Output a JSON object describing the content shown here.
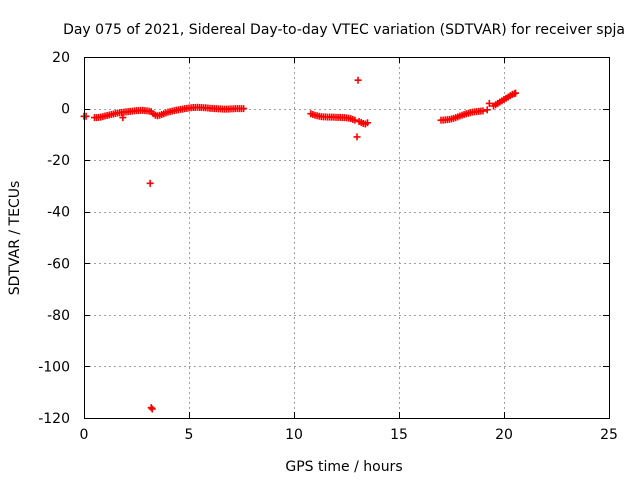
{
  "chart_data": {
    "type": "scatter",
    "title": "Day 075 of 2021, Sidereal Day-to-day VTEC variation (SDTVAR) for receiver spja",
    "xlabel": "GPS time / hours",
    "ylabel": "SDTVAR / TECUs",
    "xlim": [
      0,
      25
    ],
    "ylim": [
      -120,
      20
    ],
    "xticks": [
      0,
      5,
      10,
      15,
      20,
      25
    ],
    "yticks": [
      20,
      0,
      -20,
      -40,
      -60,
      -80,
      -100,
      -120
    ],
    "grid": true,
    "marker": "plus",
    "color": "#ff0000",
    "series": [
      {
        "values": [
          [
            0.0,
            -3.0
          ],
          [
            0.1,
            -3.0
          ],
          [
            0.5,
            -3.5
          ],
          [
            0.6,
            -3.5
          ],
          [
            0.7,
            -3.4
          ],
          [
            0.8,
            -3.3
          ],
          [
            0.9,
            -3.1
          ],
          [
            1.0,
            -2.9
          ],
          [
            1.1,
            -2.7
          ],
          [
            1.2,
            -2.5
          ],
          [
            1.3,
            -2.3
          ],
          [
            1.4,
            -2.1
          ],
          [
            1.5,
            -1.9
          ],
          [
            1.6,
            -1.7
          ],
          [
            1.7,
            -1.6
          ],
          [
            1.8,
            -1.5
          ],
          [
            1.85,
            -3.5
          ],
          [
            1.9,
            -1.4
          ],
          [
            2.0,
            -1.3
          ],
          [
            2.1,
            -1.2
          ],
          [
            2.2,
            -1.1
          ],
          [
            2.3,
            -1.0
          ],
          [
            2.4,
            -0.9
          ],
          [
            2.5,
            -0.8
          ],
          [
            2.6,
            -0.8
          ],
          [
            2.7,
            -0.7
          ],
          [
            2.8,
            -0.7
          ],
          [
            2.9,
            -0.8
          ],
          [
            3.0,
            -0.9
          ],
          [
            3.1,
            -1.0
          ],
          [
            3.2,
            -1.2
          ],
          [
            3.3,
            -2.0
          ],
          [
            3.4,
            -2.6
          ],
          [
            3.5,
            -2.8
          ],
          [
            3.6,
            -2.6
          ],
          [
            3.7,
            -2.3
          ],
          [
            3.8,
            -2.0
          ],
          [
            3.9,
            -1.7
          ],
          [
            4.0,
            -1.4
          ],
          [
            4.1,
            -1.2
          ],
          [
            4.2,
            -1.0
          ],
          [
            4.3,
            -0.8
          ],
          [
            4.4,
            -0.6
          ],
          [
            4.5,
            -0.5
          ],
          [
            4.6,
            -0.3
          ],
          [
            4.7,
            -0.2
          ],
          [
            4.8,
            0.0
          ],
          [
            4.9,
            0.1
          ],
          [
            5.0,
            0.2
          ],
          [
            5.1,
            0.3
          ],
          [
            5.2,
            0.4
          ],
          [
            5.3,
            0.4
          ],
          [
            5.4,
            0.5
          ],
          [
            5.5,
            0.4
          ],
          [
            5.6,
            0.4
          ],
          [
            5.7,
            0.3
          ],
          [
            5.8,
            0.3
          ],
          [
            5.9,
            0.2
          ],
          [
            6.0,
            0.1
          ],
          [
            6.1,
            0.1
          ],
          [
            6.2,
            0.0
          ],
          [
            6.3,
            0.0
          ],
          [
            6.4,
            -0.1
          ],
          [
            6.5,
            -0.1
          ],
          [
            6.6,
            -0.2
          ],
          [
            6.7,
            -0.2
          ],
          [
            6.8,
            -0.2
          ],
          [
            6.9,
            -0.2
          ],
          [
            7.0,
            -0.1
          ],
          [
            7.1,
            -0.1
          ],
          [
            7.2,
            0.0
          ],
          [
            7.3,
            0.0
          ],
          [
            7.4,
            0.0
          ],
          [
            7.5,
            0.0
          ],
          [
            7.6,
            0.0
          ],
          [
            3.15,
            -29.0
          ],
          [
            3.2,
            -116.0
          ],
          [
            3.25,
            -116.5
          ],
          [
            10.8,
            -2.0
          ],
          [
            10.9,
            -2.3
          ],
          [
            11.0,
            -2.6
          ],
          [
            11.1,
            -2.8
          ],
          [
            11.2,
            -3.0
          ],
          [
            11.3,
            -3.1
          ],
          [
            11.4,
            -3.2
          ],
          [
            11.5,
            -3.2
          ],
          [
            11.6,
            -3.3
          ],
          [
            11.7,
            -3.3
          ],
          [
            11.8,
            -3.3
          ],
          [
            11.9,
            -3.3
          ],
          [
            12.0,
            -3.4
          ],
          [
            12.1,
            -3.4
          ],
          [
            12.2,
            -3.4
          ],
          [
            12.3,
            -3.5
          ],
          [
            12.4,
            -3.5
          ],
          [
            12.5,
            -3.6
          ],
          [
            12.6,
            -3.7
          ],
          [
            12.7,
            -3.9
          ],
          [
            12.8,
            -4.2
          ],
          [
            12.9,
            -4.5
          ],
          [
            13.0,
            -11.0
          ],
          [
            13.05,
            11.0
          ],
          [
            13.1,
            -5.0
          ],
          [
            13.2,
            -5.4
          ],
          [
            13.3,
            -5.8
          ],
          [
            13.4,
            -6.0
          ],
          [
            13.5,
            -5.5
          ],
          [
            17.0,
            -4.5
          ],
          [
            17.1,
            -4.5
          ],
          [
            17.2,
            -4.4
          ],
          [
            17.3,
            -4.3
          ],
          [
            17.4,
            -4.2
          ],
          [
            17.5,
            -4.0
          ],
          [
            17.6,
            -3.8
          ],
          [
            17.7,
            -3.5
          ],
          [
            17.8,
            -3.2
          ],
          [
            17.9,
            -2.9
          ],
          [
            18.0,
            -2.6
          ],
          [
            18.1,
            -2.3
          ],
          [
            18.2,
            -2.0
          ],
          [
            18.3,
            -1.8
          ],
          [
            18.4,
            -1.6
          ],
          [
            18.5,
            -1.4
          ],
          [
            18.6,
            -1.3
          ],
          [
            18.7,
            -1.2
          ],
          [
            18.8,
            -1.1
          ],
          [
            18.9,
            -1.0
          ],
          [
            19.0,
            -0.9
          ],
          [
            19.2,
            -0.5
          ],
          [
            19.3,
            2.0
          ],
          [
            19.5,
            1.0
          ],
          [
            19.6,
            1.5
          ],
          [
            19.7,
            2.0
          ],
          [
            19.8,
            2.5
          ],
          [
            19.9,
            3.0
          ],
          [
            20.0,
            3.5
          ],
          [
            20.1,
            4.0
          ],
          [
            20.2,
            4.5
          ],
          [
            20.3,
            5.0
          ],
          [
            20.4,
            5.5
          ],
          [
            20.5,
            5.8
          ],
          [
            20.55,
            6.0
          ]
        ]
      }
    ]
  }
}
